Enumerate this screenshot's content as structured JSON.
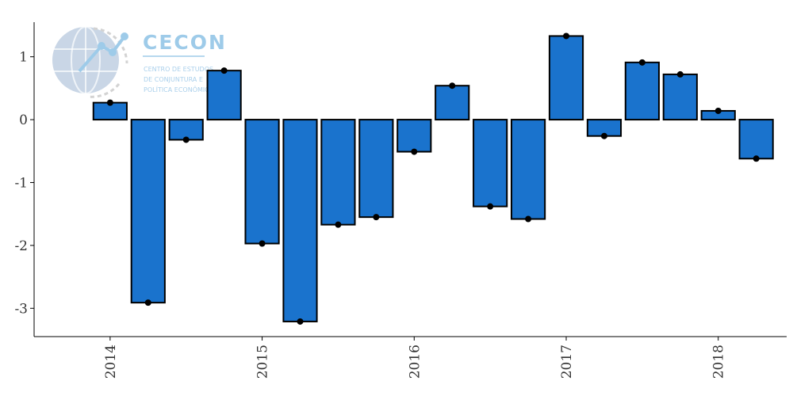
{
  "logo": {
    "title": "CECON",
    "line1": "CENTRO DE ESTUDOS",
    "line2": "DE CONJUNTURA E",
    "line3": "POLÍTICA ECONÔMICA"
  },
  "chart_data": {
    "type": "bar",
    "title": "",
    "xlabel": "",
    "ylabel": "",
    "ylim": [
      -3.45,
      1.55
    ],
    "yticks": [
      1,
      0,
      -1,
      -2,
      -3
    ],
    "ytick_labels": [
      "1",
      "0",
      "-1",
      "-2",
      "-3"
    ],
    "xlim": [
      2013.5,
      2018.45
    ],
    "xticks": [
      2014,
      2015,
      2016,
      2017,
      2018
    ],
    "xtick_labels": [
      "2014",
      "2015",
      "2016",
      "2017",
      "2018"
    ],
    "bar_width": 0.22,
    "x": [
      2014.0,
      2014.25,
      2014.5,
      2014.75,
      2015.0,
      2015.25,
      2015.5,
      2015.75,
      2016.0,
      2016.25,
      2016.5,
      2016.75,
      2017.0,
      2017.25,
      2017.5,
      2017.75,
      2018.0,
      2018.25
    ],
    "values": [
      0.27,
      -2.91,
      -0.32,
      0.78,
      -1.97,
      -3.21,
      -1.67,
      -1.55,
      -0.51,
      0.54,
      -1.38,
      -1.58,
      1.33,
      -0.26,
      0.91,
      0.72,
      0.14,
      -0.62
    ],
    "bar_color": "#1a73cd",
    "edge_color": "#000000",
    "point_color": "#000000",
    "grid": false,
    "legend": "none"
  }
}
